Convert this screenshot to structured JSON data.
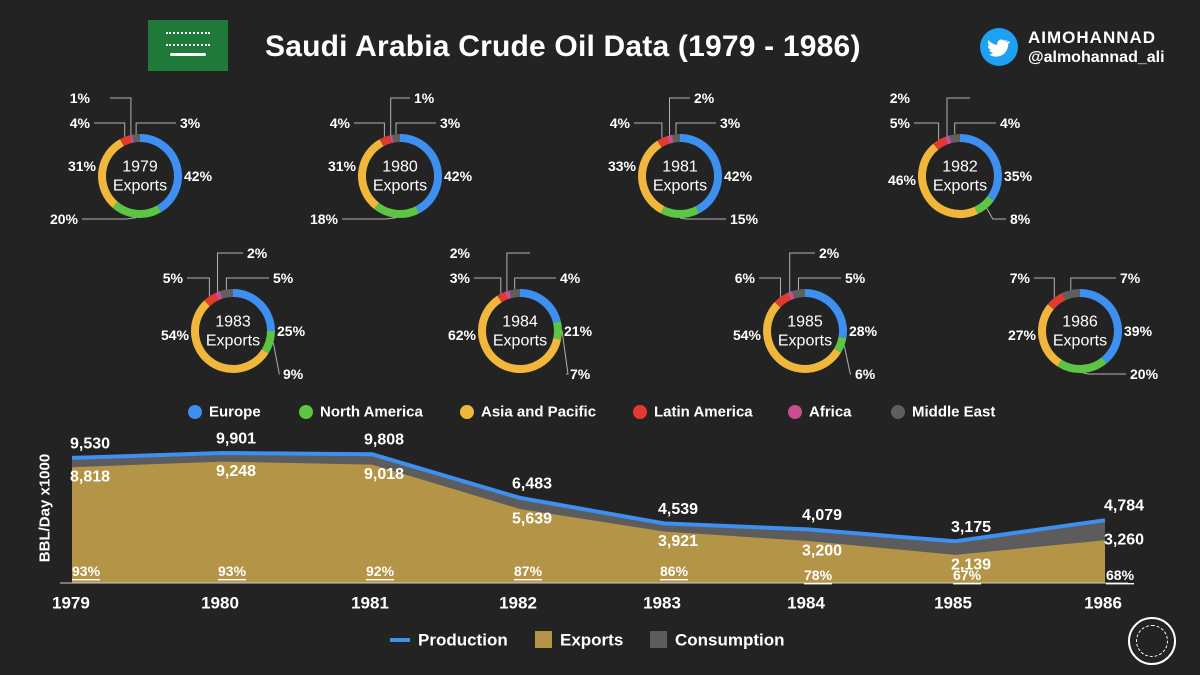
{
  "header": {
    "title": "Saudi Arabia Crude Oil Data (1979 - 1986)",
    "brand_name": "AIMOHANNAD",
    "brand_handle": "@almohannad_ali",
    "brand_icon": "twitter-bird-icon",
    "flag_icon": "saudi-flag-icon",
    "seal_icon": "aramco-seal-icon"
  },
  "colors": {
    "background": "#232323",
    "europe": "#3d8ff0",
    "north_america": "#5cc543",
    "asia_pacific": "#f1b73d",
    "latin_america": "#e23b2e",
    "africa": "#c74f8d",
    "middle_east": "#5f5f5f",
    "production": "#3d8ff0",
    "exports": "#b49446",
    "consumption": "#5c5c5c",
    "leader": "#b0b0b0"
  },
  "chart_data": {
    "type": "area",
    "title": "Saudi Arabia Crude Oil Data (1979 - 1986)",
    "xlabel": "",
    "ylabel": "BBL/Day x1000",
    "x": [
      "1979",
      "1980",
      "1981",
      "1982",
      "1983",
      "1984",
      "1985",
      "1986"
    ],
    "ylim": [
      0,
      10500
    ],
    "series": [
      {
        "name": "Production",
        "kind": "line",
        "values": [
          9530,
          9901,
          9808,
          6483,
          4539,
          4079,
          3175,
          4784
        ],
        "labels": [
          "9,530",
          "9,901",
          "9,808",
          "6,483",
          "4,539",
          "4,079",
          "3,175",
          "4,784"
        ]
      },
      {
        "name": "Exports",
        "kind": "area",
        "values": [
          8818,
          9248,
          9018,
          5639,
          3921,
          3200,
          2139,
          3260
        ],
        "labels": [
          "8,818",
          "9,248",
          "9,018",
          "5,639",
          "3,921",
          "3,200",
          "2,139",
          "3,260"
        ]
      },
      {
        "name": "Consumption",
        "kind": "area",
        "values": [
          712,
          653,
          790,
          844,
          618,
          879,
          1036,
          1524
        ]
      }
    ],
    "export_share": [
      "93%",
      "93%",
      "92%",
      "87%",
      "86%",
      "78%",
      "67%",
      "68%"
    ],
    "legend": [
      "Production",
      "Exports",
      "Consumption"
    ],
    "donut_center_label": "Exports",
    "regions": [
      "Europe",
      "North America",
      "Asia and Pacific",
      "Latin America",
      "Africa",
      "Middle East"
    ],
    "donuts": [
      {
        "year": "1979",
        "values": [
          42,
          20,
          31,
          4,
          1,
          3
        ],
        "labels": [
          "42%",
          "20%",
          "31%",
          "4%",
          "1%",
          "3%"
        ]
      },
      {
        "year": "1980",
        "values": [
          42,
          18,
          31,
          4,
          1,
          3
        ],
        "labels": [
          "42%",
          "18%",
          "31%",
          "4%",
          "1%",
          "3%"
        ]
      },
      {
        "year": "1981",
        "values": [
          42,
          15,
          33,
          4,
          2,
          3
        ],
        "labels": [
          "42%",
          "15%",
          "33%",
          "4%",
          "2%",
          "3%"
        ]
      },
      {
        "year": "1982",
        "values": [
          35,
          8,
          46,
          5,
          2,
          4
        ],
        "labels": [
          "35%",
          "8%",
          "46%",
          "5%",
          "2%",
          "4%"
        ]
      },
      {
        "year": "1983",
        "values": [
          25,
          9,
          54,
          5,
          2,
          5
        ],
        "labels": [
          "25%",
          "9%",
          "54%",
          "5%",
          "2%",
          "5%"
        ]
      },
      {
        "year": "1984",
        "values": [
          21,
          7,
          62,
          3,
          2,
          4
        ],
        "labels": [
          "21%",
          "7%",
          "62%",
          "3%",
          "2%",
          "4%"
        ]
      },
      {
        "year": "1985",
        "values": [
          28,
          6,
          54,
          6,
          2,
          5
        ],
        "labels": [
          "28%",
          "6%",
          "54%",
          "6%",
          "2%",
          "5%"
        ]
      },
      {
        "year": "1986",
        "values": [
          39,
          20,
          27,
          7,
          0,
          7
        ],
        "labels": [
          "39%",
          "20%",
          "27%",
          "7%",
          "",
          "7%"
        ]
      }
    ]
  }
}
